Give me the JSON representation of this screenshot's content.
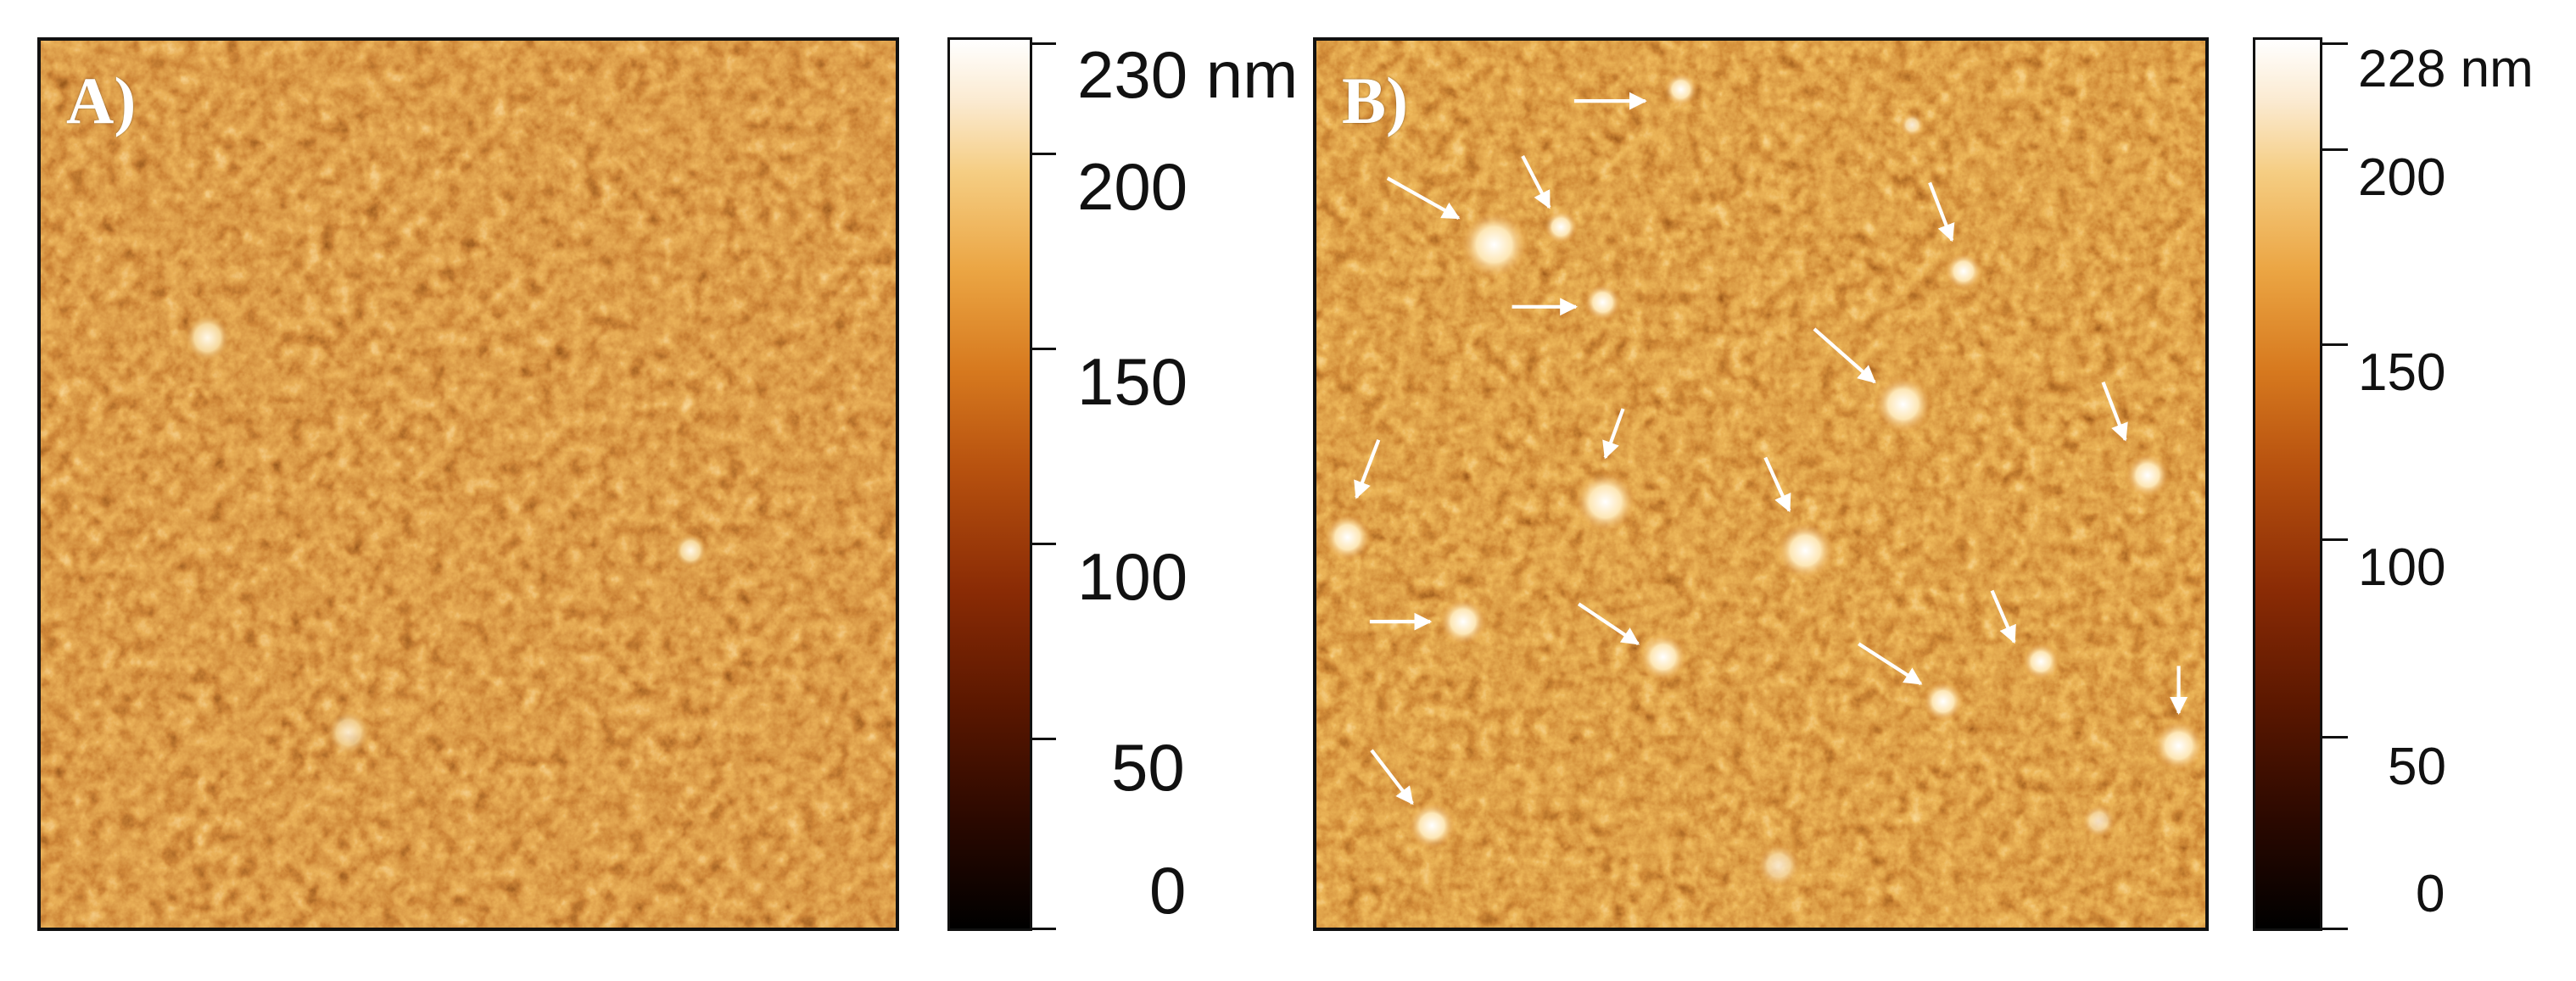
{
  "panels": [
    {
      "label": "A)",
      "colorbar": {
        "max_label": "230 nm",
        "ticks": [
          "200",
          "150",
          "100",
          "50",
          "0"
        ]
      }
    },
    {
      "label": "B)",
      "colorbar": {
        "max_label": "228 nm",
        "ticks": [
          "200",
          "150",
          "100",
          "50",
          "0"
        ]
      }
    }
  ],
  "colormap": [
    "#000000",
    "#5a1700",
    "#b8520f",
    "#eba543",
    "#ffffff"
  ],
  "annotation_color": "#ffffff"
}
